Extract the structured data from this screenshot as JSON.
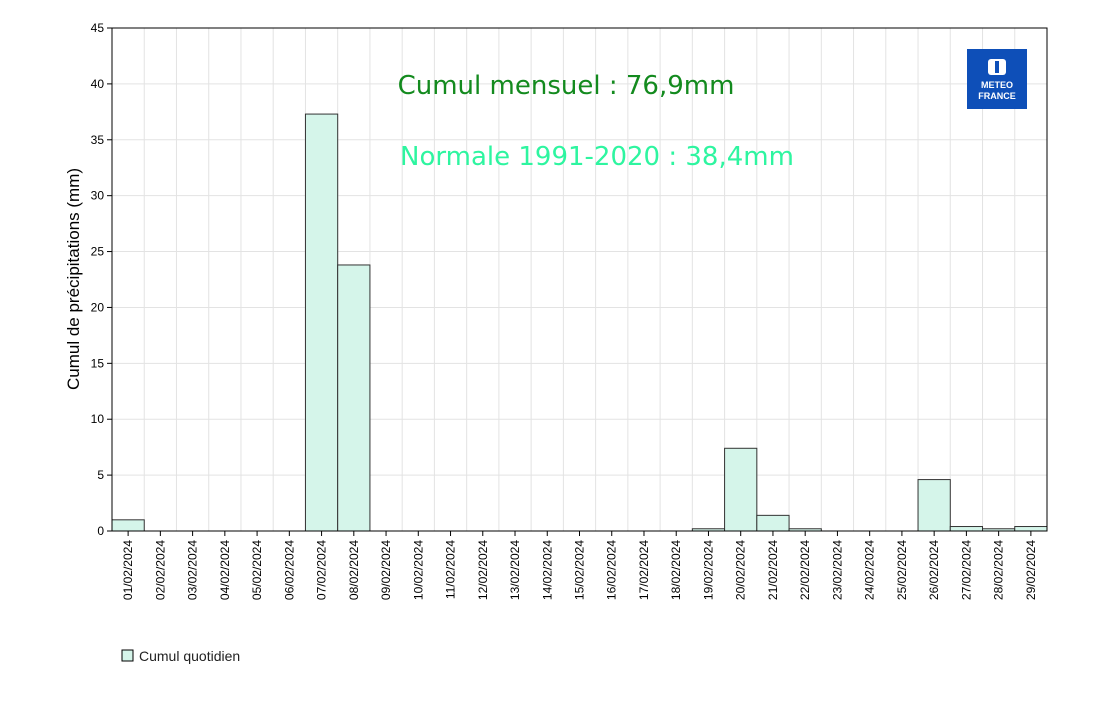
{
  "chart_data": {
    "type": "bar",
    "ylabel": "Cumul de précipitations (mm)",
    "xlabel": "",
    "ylim": [
      0,
      45
    ],
    "yticks": [
      0,
      5,
      10,
      15,
      20,
      25,
      30,
      35,
      40,
      45
    ],
    "grid": true,
    "categories": [
      "01/02/2024",
      "02/02/2024",
      "03/02/2024",
      "04/02/2024",
      "05/02/2024",
      "06/02/2024",
      "07/02/2024",
      "08/02/2024",
      "09/02/2024",
      "10/02/2024",
      "11/02/2024",
      "12/02/2024",
      "13/02/2024",
      "14/02/2024",
      "15/02/2024",
      "16/02/2024",
      "17/02/2024",
      "18/02/2024",
      "19/02/2024",
      "20/02/2024",
      "21/02/2024",
      "22/02/2024",
      "23/02/2024",
      "24/02/2024",
      "25/02/2024",
      "26/02/2024",
      "27/02/2024",
      "28/02/2024",
      "29/02/2024"
    ],
    "series": [
      {
        "name": "Cumul quotidien",
        "color": "#d5f5ea",
        "values": [
          1.0,
          0,
          0,
          0,
          0,
          0,
          37.3,
          23.8,
          0,
          0,
          0,
          0,
          0,
          0,
          0,
          0,
          0,
          0,
          0.2,
          7.4,
          1.4,
          0.2,
          0,
          0,
          0,
          4.6,
          0.4,
          0.2,
          0.4
        ]
      }
    ],
    "legend_position": "bottom-left",
    "annotations": [
      {
        "text": "Cumul mensuel : 76,9mm",
        "color": "#138a1e"
      },
      {
        "text": "Normale 1991-2020 : 38,4mm",
        "color": "#2ef5a0"
      }
    ]
  },
  "logo": {
    "line1": "METEO",
    "line2": "FRANCE",
    "color": "#0e4fb8"
  }
}
